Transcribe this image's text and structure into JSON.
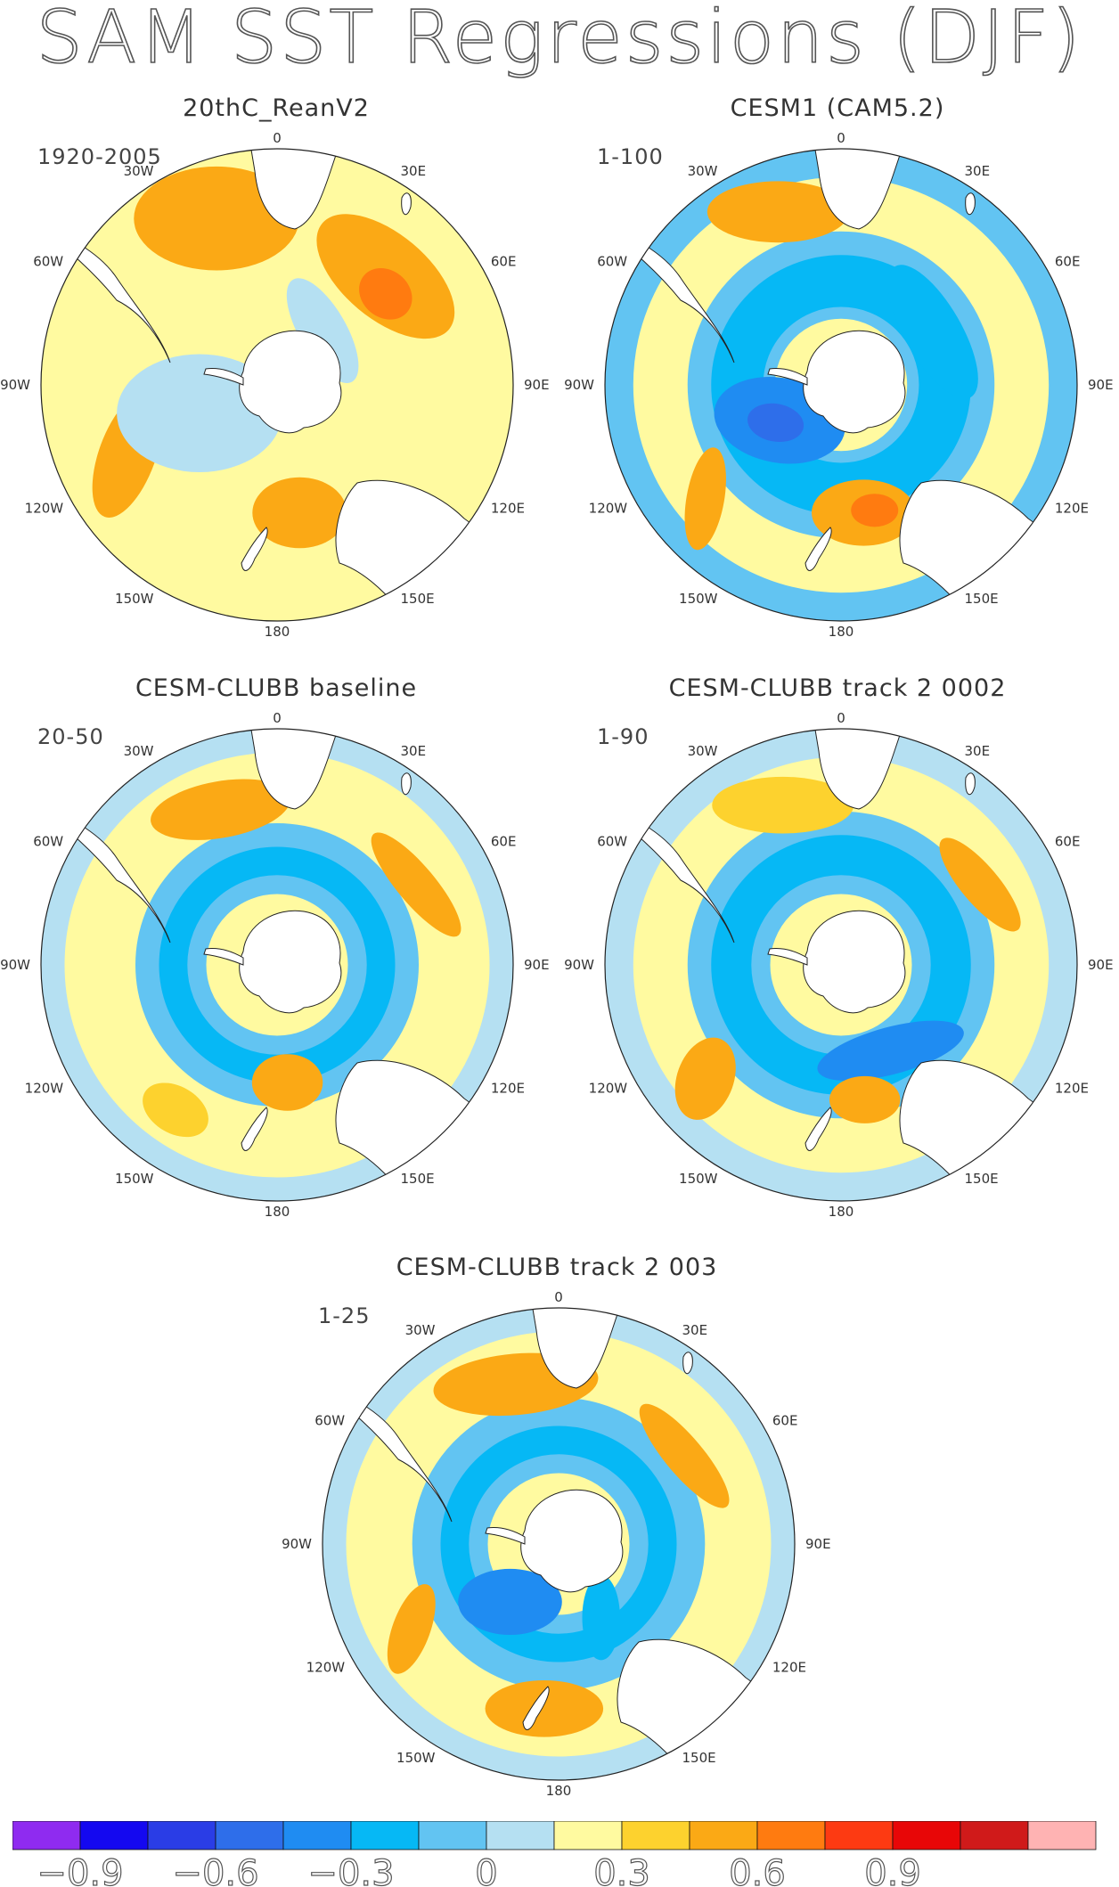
{
  "title": "SAM SST Regressions (DJF)",
  "colorbar": {
    "colors": [
      "#8f2bf0",
      "#1408f0",
      "#2a3de6",
      "#2e6eea",
      "#1f8cf2",
      "#06b8f5",
      "#62c4f2",
      "#b5e0f2",
      "#fffaa0",
      "#fdd22e",
      "#fba915",
      "#ff7b10",
      "#fd3a12",
      "#e80607",
      "#d01a1a",
      "#ffb3b3"
    ],
    "labels": [
      "−0.9",
      "−0.6",
      "−0.3",
      "0",
      "0.3",
      "0.6",
      "0.9"
    ]
  },
  "lon_labels": [
    "0",
    "30E",
    "60E",
    "90E",
    "120E",
    "150E",
    "180",
    "150W",
    "120W",
    "90W",
    "60W",
    "30W"
  ],
  "chart_data": [
    {
      "type": "heatmap",
      "title": "20thC_ReanV2",
      "period": "1920-2005",
      "projection": "south-polar-stereographic",
      "legend": "bottom",
      "color_levels": [
        -1.05,
        -0.9,
        -0.75,
        -0.6,
        -0.45,
        -0.3,
        -0.15,
        0,
        0.15,
        0.3,
        0.45,
        0.6,
        0.75,
        0.9,
        1.05
      ],
      "patterns": [
        {
          "region": "broad mid-latitude band",
          "value": 0.1
        },
        {
          "region": "South Atlantic / Indian sector (30W-60E)",
          "value": 0.3
        },
        {
          "region": "south of Africa near 45E",
          "value": 0.5
        },
        {
          "region": "Pacific near 120W",
          "value": 0.3
        },
        {
          "region": "Tasman / New Zealand",
          "value": 0.3
        },
        {
          "region": "Amundsen-Bellingshausen / Antarctic margin",
          "value": -0.1
        }
      ]
    },
    {
      "type": "heatmap",
      "title": "CESM1 (CAM5.2)",
      "period": "1-100",
      "projection": "south-polar-stereographic",
      "legend": "bottom",
      "patterns": [
        {
          "region": "subpolar ring",
          "value": -0.3
        },
        {
          "region": "Bellingshausen / Ross sector",
          "value": -0.6
        },
        {
          "region": "New Zealand",
          "value": 0.5
        },
        {
          "region": "south of Africa",
          "value": 0.3
        },
        {
          "region": "Pacific near 120W",
          "value": 0.3
        },
        {
          "region": "outer mid-latitudes",
          "value": -0.2
        }
      ]
    },
    {
      "type": "heatmap",
      "title": "CESM-CLUBB baseline",
      "period": "20-50",
      "projection": "south-polar-stereographic",
      "legend": "bottom",
      "patterns": [
        {
          "region": "subpolar ring",
          "value": -0.3
        },
        {
          "region": "ring core",
          "value": -0.45
        },
        {
          "region": "south of Africa",
          "value": 0.3
        },
        {
          "region": "Pacific mid-latitudes",
          "value": 0.2
        },
        {
          "region": "outer mid-latitudes",
          "value": -0.15
        }
      ]
    },
    {
      "type": "heatmap",
      "title": "CESM-CLUBB track 2 0002",
      "period": "1-90",
      "projection": "south-polar-stereographic",
      "legend": "bottom",
      "patterns": [
        {
          "region": "subpolar ring",
          "value": -0.3
        },
        {
          "region": "Ross / Amundsen sector",
          "value": -0.5
        },
        {
          "region": "south of Africa",
          "value": 0.3
        },
        {
          "region": "New Zealand",
          "value": 0.3
        },
        {
          "region": "outer mid-latitudes",
          "value": -0.15
        }
      ]
    },
    {
      "type": "heatmap",
      "title": "CESM-CLUBB track 2 003",
      "period": "1-25",
      "projection": "south-polar-stereographic",
      "legend": "bottom",
      "patterns": [
        {
          "region": "subpolar ring",
          "value": -0.3
        },
        {
          "region": "Ross sector",
          "value": -0.6
        },
        {
          "region": "South Atlantic / Indian sector",
          "value": 0.3
        },
        {
          "region": "Pacific south of 150W",
          "value": 0.3
        },
        {
          "region": "outer mid-latitudes",
          "value": -0.1
        }
      ]
    }
  ]
}
